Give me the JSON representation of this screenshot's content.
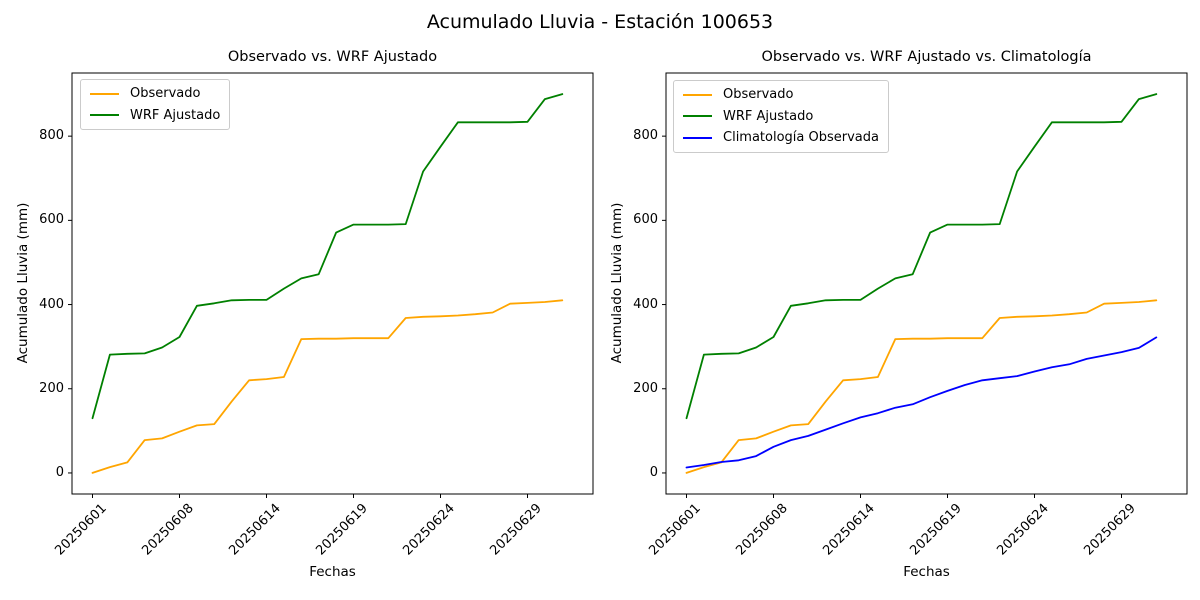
{
  "figure": {
    "title": "Acumulado Lluvia - Estación 100653"
  },
  "chart_data": [
    {
      "type": "line",
      "title": "Observado vs. WRF Ajustado",
      "xlabel": "Fechas",
      "ylabel": "Acumulado Lluvia (mm)",
      "n_points": 28,
      "x_tick_indices": [
        0,
        5,
        10,
        15,
        20,
        25
      ],
      "x_tick_labels": [
        "20250601",
        "20250608",
        "20250614",
        "20250619",
        "20250624",
        "20250629"
      ],
      "y_ticks": [
        0,
        200,
        400,
        600,
        800
      ],
      "ylim": [
        -50,
        950
      ],
      "grid": false,
      "legend_position": "upper left",
      "series": [
        {
          "name": "Observado",
          "color": "#FFA500",
          "values": [
            0,
            14,
            25,
            78,
            82,
            98,
            113,
            116,
            170,
            220,
            223,
            228,
            318,
            319,
            319,
            320,
            320,
            320,
            368,
            371,
            372,
            374,
            377,
            381,
            402,
            404,
            406,
            410
          ]
        },
        {
          "name": "WRF Ajustado",
          "color": "#008000",
          "values": [
            130,
            281,
            283,
            284,
            298,
            323,
            397,
            403,
            410,
            411,
            411,
            438,
            462,
            472,
            571,
            590,
            590,
            590,
            591,
            716,
            775,
            833,
            833,
            833,
            833,
            834,
            888,
            900
          ]
        }
      ]
    },
    {
      "type": "line",
      "title": "Observado vs. WRF Ajustado vs. Climatología",
      "xlabel": "Fechas",
      "ylabel": "Acumulado Lluvia (mm)",
      "n_points": 28,
      "x_tick_indices": [
        0,
        5,
        10,
        15,
        20,
        25
      ],
      "x_tick_labels": [
        "20250601",
        "20250608",
        "20250614",
        "20250619",
        "20250624",
        "20250629"
      ],
      "y_ticks": [
        0,
        200,
        400,
        600,
        800
      ],
      "ylim": [
        -50,
        950
      ],
      "grid": false,
      "legend_position": "upper left",
      "series": [
        {
          "name": "Observado",
          "color": "#FFA500",
          "values": [
            0,
            14,
            25,
            78,
            82,
            98,
            113,
            116,
            170,
            220,
            223,
            228,
            318,
            319,
            319,
            320,
            320,
            320,
            368,
            371,
            372,
            374,
            377,
            381,
            402,
            404,
            406,
            410
          ]
        },
        {
          "name": "WRF Ajustado",
          "color": "#008000",
          "values": [
            130,
            281,
            283,
            284,
            298,
            323,
            397,
            403,
            410,
            411,
            411,
            438,
            462,
            472,
            571,
            590,
            590,
            590,
            591,
            716,
            775,
            833,
            833,
            833,
            833,
            834,
            888,
            900
          ]
        },
        {
          "name": "Climatología Observada",
          "color": "#0000FF",
          "values": [
            13,
            19,
            26,
            30,
            40,
            62,
            78,
            88,
            103,
            118,
            132,
            142,
            155,
            163,
            180,
            195,
            209,
            220,
            225,
            230,
            241,
            251,
            258,
            271,
            279,
            287,
            297,
            322
          ]
        }
      ]
    }
  ]
}
